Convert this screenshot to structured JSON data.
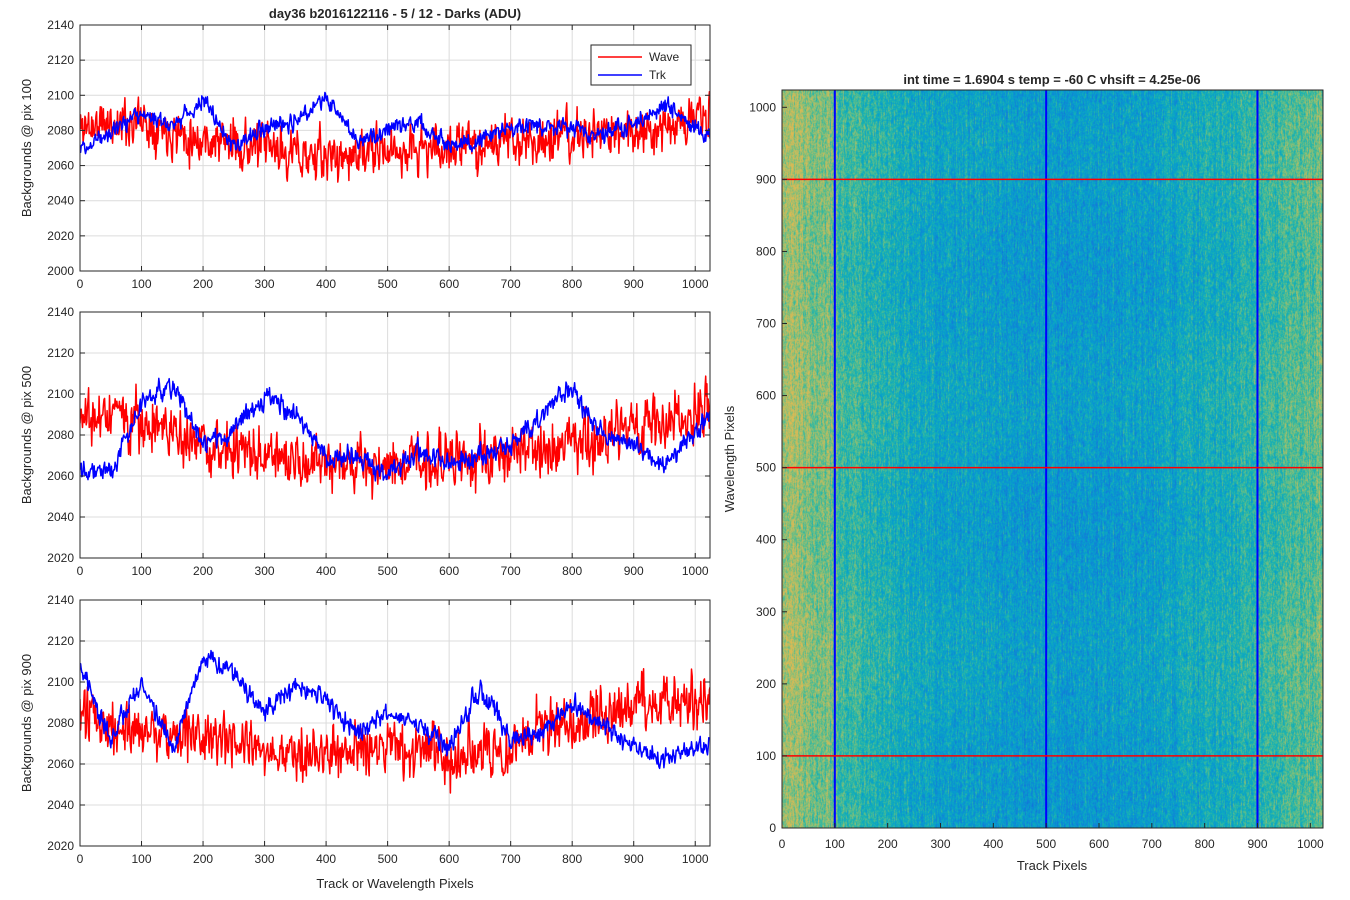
{
  "figure": {
    "title": "day36 b2016122116 - 5 / 12 - Darks (ADU)",
    "shared_xlabel": "Track or Wavelength Pixels"
  },
  "chart_data": [
    {
      "type": "line",
      "ylabel": "Backgrounds @ pix 100",
      "xlim": [
        0,
        1024
      ],
      "ylim": [
        2000,
        2140
      ],
      "xticks": [
        0,
        100,
        200,
        300,
        400,
        500,
        600,
        700,
        800,
        900,
        1000
      ],
      "yticks": [
        2000,
        2020,
        2040,
        2060,
        2080,
        2100,
        2120,
        2140
      ],
      "grid": true,
      "legend": "top-right",
      "series": [
        {
          "name": "Wave",
          "color": "#ff0000",
          "anchors_x": [
            0,
            100,
            200,
            300,
            400,
            500,
            600,
            700,
            800,
            900,
            1024
          ],
          "anchors_y": [
            2082,
            2086,
            2075,
            2070,
            2064,
            2068,
            2070,
            2074,
            2076,
            2080,
            2088
          ],
          "noise": 14,
          "seed": 11
        },
        {
          "name": "Trk",
          "color": "#0000ff",
          "anchors_x": [
            0,
            50,
            100,
            150,
            200,
            250,
            300,
            350,
            400,
            450,
            500,
            550,
            600,
            650,
            700,
            750,
            800,
            850,
            900,
            950,
            1024
          ],
          "anchors_y": [
            2070,
            2080,
            2090,
            2082,
            2098,
            2070,
            2082,
            2085,
            2100,
            2073,
            2082,
            2085,
            2071,
            2075,
            2082,
            2083,
            2082,
            2078,
            2083,
            2095,
            2075
          ],
          "noise": 5,
          "seed": 12
        }
      ]
    },
    {
      "type": "line",
      "ylabel": "Backgrounds @ pix 500",
      "xlim": [
        0,
        1024
      ],
      "ylim": [
        2020,
        2140
      ],
      "xticks": [
        0,
        100,
        200,
        300,
        400,
        500,
        600,
        700,
        800,
        900,
        1000
      ],
      "yticks": [
        2020,
        2040,
        2060,
        2080,
        2100,
        2120,
        2140
      ],
      "grid": true,
      "series": [
        {
          "name": "Wave",
          "color": "#ff0000",
          "anchors_x": [
            0,
            100,
            200,
            300,
            400,
            500,
            600,
            700,
            800,
            900,
            1024
          ],
          "anchors_y": [
            2090,
            2088,
            2075,
            2068,
            2065,
            2066,
            2068,
            2070,
            2076,
            2082,
            2092
          ],
          "noise": 14,
          "seed": 21
        },
        {
          "name": "Trk",
          "color": "#0000ff",
          "anchors_x": [
            0,
            50,
            100,
            150,
            200,
            250,
            300,
            350,
            400,
            450,
            500,
            550,
            600,
            650,
            700,
            750,
            800,
            850,
            900,
            950,
            1024
          ],
          "anchors_y": [
            2065,
            2062,
            2095,
            2105,
            2075,
            2082,
            2098,
            2092,
            2068,
            2070,
            2060,
            2072,
            2065,
            2070,
            2075,
            2090,
            2103,
            2080,
            2075,
            2065,
            2090
          ],
          "noise": 5,
          "seed": 22
        }
      ]
    },
    {
      "type": "line",
      "ylabel": "Backgrounds @ pix 900",
      "xlabel": "Track or Wavelength Pixels",
      "xlim": [
        0,
        1024
      ],
      "ylim": [
        2020,
        2140
      ],
      "xticks": [
        0,
        100,
        200,
        300,
        400,
        500,
        600,
        700,
        800,
        900,
        1000
      ],
      "yticks": [
        2020,
        2040,
        2060,
        2080,
        2100,
        2120,
        2140
      ],
      "grid": true,
      "series": [
        {
          "name": "Wave",
          "color": "#ff0000",
          "anchors_x": [
            0,
            100,
            200,
            300,
            400,
            500,
            600,
            700,
            800,
            900,
            1024
          ],
          "anchors_y": [
            2082,
            2078,
            2072,
            2066,
            2064,
            2068,
            2062,
            2070,
            2080,
            2090,
            2092
          ],
          "noise": 14,
          "seed": 31
        },
        {
          "name": "Trk",
          "color": "#0000ff",
          "anchors_x": [
            0,
            50,
            100,
            150,
            200,
            250,
            300,
            350,
            400,
            450,
            500,
            550,
            600,
            650,
            700,
            750,
            800,
            850,
            900,
            950,
            1024
          ],
          "anchors_y": [
            2108,
            2072,
            2100,
            2068,
            2112,
            2105,
            2085,
            2098,
            2092,
            2075,
            2085,
            2080,
            2068,
            2098,
            2072,
            2075,
            2090,
            2080,
            2068,
            2062,
            2070
          ],
          "noise": 5,
          "seed": 32
        }
      ]
    },
    {
      "type": "heatmap",
      "title": "int time = 1.6904 s    temp = -60 C    vhsift = 4.25e-06",
      "xlabel": "Track Pixels",
      "ylabel": "Wavelength Pixels",
      "xlim": [
        0,
        1024
      ],
      "ylim": [
        0,
        1024
      ],
      "xticks": [
        0,
        100,
        200,
        300,
        400,
        500,
        600,
        700,
        800,
        900,
        1000
      ],
      "yticks": [
        0,
        100,
        200,
        300,
        400,
        500,
        600,
        700,
        800,
        900,
        1000
      ],
      "colormap": "parula",
      "vertical_markers": [
        100,
        500,
        900
      ],
      "vertical_marker_color": "#0000ff",
      "horizontal_markers": [
        100,
        500,
        900
      ],
      "horizontal_marker_color": "#ff0000"
    }
  ]
}
